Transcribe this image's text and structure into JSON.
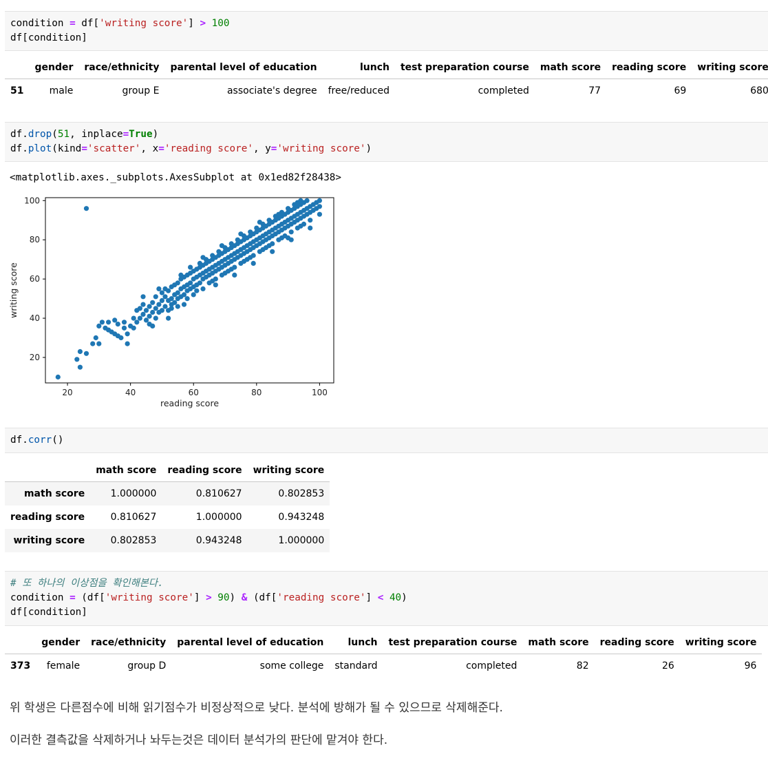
{
  "cells": {
    "cell1": {
      "code": {
        "line1": {
          "var": "condition",
          "eq": " = ",
          "obj": "df[",
          "key": "'writing score'",
          "close": "] ",
          "op": ">",
          "num": " 100"
        },
        "line2": "df[condition]"
      },
      "table": {
        "columns": [
          "gender",
          "race/ethnicity",
          "parental level of education",
          "lunch",
          "test preparation course",
          "math score",
          "reading score",
          "writing score"
        ],
        "rows": [
          {
            "index": "51",
            "values": [
              "male",
              "group E",
              "associate's degree",
              "free/reduced",
              "completed",
              "77",
              "69",
              "680"
            ]
          }
        ]
      }
    },
    "cell2": {
      "code": {
        "line1": {
          "a": "df.",
          "fn": "drop",
          "b": "(",
          "num": "51",
          ",": ", inplace",
          "eq": "=",
          "kw": "True",
          "close": ")"
        },
        "line2": {
          "a": "df.",
          "fn": "plot",
          "b": "(kind",
          "eq1": "=",
          "s1": "'scatter'",
          "c": ", x",
          "eq2": "=",
          "s2": "'reading score'",
          "d": ", y",
          "eq3": "=",
          "s3": "'writing score'",
          "close": ")"
        }
      },
      "output_text": "<matplotlib.axes._subplots.AxesSubplot at 0x1ed82f28438>"
    },
    "cell3": {
      "code": {
        "a": "df.",
        "fn": "corr",
        "b": "()"
      },
      "table": {
        "columns": [
          "math score",
          "reading score",
          "writing score"
        ],
        "rows": [
          {
            "index": "math score",
            "values": [
              "1.000000",
              "0.810627",
              "0.802853"
            ]
          },
          {
            "index": "reading score",
            "values": [
              "0.810627",
              "1.000000",
              "0.943248"
            ]
          },
          {
            "index": "writing score",
            "values": [
              "0.802853",
              "0.943248",
              "1.000000"
            ]
          }
        ]
      }
    },
    "cell4": {
      "code": {
        "comment": "# 또 하나의 이상점을 확인해본다.",
        "line2": {
          "a": "condition ",
          "eq": "=",
          "b": " (df[",
          "s1": "'writing score'",
          "c": "] ",
          "gt": ">",
          "n1": " 90",
          "d": ") ",
          "amp": "&",
          "e": " (df[",
          "s2": "'reading score'",
          "f": "] ",
          "lt": "<",
          "n2": " 40",
          "g": ")"
        },
        "line3": "df[condition]"
      },
      "table": {
        "columns": [
          "gender",
          "race/ethnicity",
          "parental level of education",
          "lunch",
          "test preparation course",
          "math score",
          "reading score",
          "writing score"
        ],
        "rows": [
          {
            "index": "373",
            "values": [
              "female",
              "group D",
              "some college",
              "standard",
              "completed",
              "82",
              "26",
              "96"
            ]
          }
        ]
      }
    }
  },
  "markdown": {
    "p1": "위 학생은 다른점수에 비해 읽기점수가 비정상적으로 낮다. 분석에 방해가 될 수 있으므로 삭제해준다.",
    "p2": "이러한 결측값을 삭제하거나 놔두는것은 데이터 분석가의 판단에 맡겨야 한다."
  },
  "chart_data": {
    "type": "scatter",
    "xlabel": "reading score",
    "ylabel": "writing score",
    "xlim": [
      13,
      104.5
    ],
    "ylim": [
      7,
      101.5
    ],
    "xticks": [
      20,
      40,
      60,
      80,
      100
    ],
    "yticks": [
      20,
      40,
      60,
      80,
      100
    ],
    "grid": false,
    "color": "#1f77b4",
    "points": [
      [
        17,
        10
      ],
      [
        23,
        19
      ],
      [
        24,
        15
      ],
      [
        24,
        23
      ],
      [
        26,
        22
      ],
      [
        26,
        96
      ],
      [
        28,
        27
      ],
      [
        29,
        30
      ],
      [
        30,
        27
      ],
      [
        30,
        36
      ],
      [
        31,
        38
      ],
      [
        32,
        35
      ],
      [
        33,
        34
      ],
      [
        33,
        38
      ],
      [
        34,
        33
      ],
      [
        35,
        32
      ],
      [
        35,
        39
      ],
      [
        36,
        31
      ],
      [
        36,
        37
      ],
      [
        37,
        30
      ],
      [
        38,
        35
      ],
      [
        38,
        38
      ],
      [
        39,
        32
      ],
      [
        39,
        27
      ],
      [
        40,
        36
      ],
      [
        41,
        35
      ],
      [
        41,
        40
      ],
      [
        42,
        38
      ],
      [
        42,
        44
      ],
      [
        43,
        40
      ],
      [
        43,
        45
      ],
      [
        44,
        42
      ],
      [
        44,
        47
      ],
      [
        45,
        39
      ],
      [
        45,
        44
      ],
      [
        46,
        41
      ],
      [
        46,
        46
      ],
      [
        46,
        37
      ],
      [
        47,
        43
      ],
      [
        47,
        48
      ],
      [
        48,
        45
      ],
      [
        48,
        40
      ],
      [
        48,
        51
      ],
      [
        49,
        47
      ],
      [
        49,
        43
      ],
      [
        50,
        49
      ],
      [
        50,
        44
      ],
      [
        50,
        53
      ],
      [
        51,
        46
      ],
      [
        51,
        51
      ],
      [
        52,
        49
      ],
      [
        52,
        44
      ],
      [
        52,
        54
      ],
      [
        53,
        50
      ],
      [
        53,
        47
      ],
      [
        53,
        56
      ],
      [
        54,
        52
      ],
      [
        54,
        48
      ],
      [
        54,
        57
      ],
      [
        55,
        53
      ],
      [
        55,
        50
      ],
      [
        55,
        58
      ],
      [
        56,
        55
      ],
      [
        56,
        51
      ],
      [
        56,
        60
      ],
      [
        57,
        56
      ],
      [
        57,
        52
      ],
      [
        57,
        61
      ],
      [
        58,
        57
      ],
      [
        58,
        54
      ],
      [
        58,
        62
      ],
      [
        59,
        58
      ],
      [
        59,
        55
      ],
      [
        59,
        63
      ],
      [
        60,
        60
      ],
      [
        60,
        56
      ],
      [
        60,
        64
      ],
      [
        61,
        61
      ],
      [
        61,
        57
      ],
      [
        61,
        65
      ],
      [
        62,
        62
      ],
      [
        62,
        58
      ],
      [
        62,
        66
      ],
      [
        63,
        63
      ],
      [
        63,
        60
      ],
      [
        63,
        67
      ],
      [
        64,
        64
      ],
      [
        64,
        61
      ],
      [
        64,
        68
      ],
      [
        65,
        65
      ],
      [
        65,
        62
      ],
      [
        65,
        69
      ],
      [
        66,
        66
      ],
      [
        66,
        63
      ],
      [
        66,
        70
      ],
      [
        67,
        67
      ],
      [
        67,
        64
      ],
      [
        67,
        71
      ],
      [
        68,
        68
      ],
      [
        68,
        65
      ],
      [
        68,
        72
      ],
      [
        69,
        69
      ],
      [
        69,
        66
      ],
      [
        69,
        73
      ],
      [
        70,
        70
      ],
      [
        70,
        67
      ],
      [
        70,
        74
      ],
      [
        71,
        71
      ],
      [
        71,
        68
      ],
      [
        71,
        75
      ],
      [
        72,
        72
      ],
      [
        72,
        69
      ],
      [
        72,
        76
      ],
      [
        73,
        73
      ],
      [
        73,
        70
      ],
      [
        73,
        77
      ],
      [
        74,
        74
      ],
      [
        74,
        71
      ],
      [
        74,
        78
      ],
      [
        75,
        75
      ],
      [
        75,
        72
      ],
      [
        75,
        79
      ],
      [
        76,
        76
      ],
      [
        76,
        73
      ],
      [
        76,
        80
      ],
      [
        77,
        77
      ],
      [
        77,
        74
      ],
      [
        77,
        81
      ],
      [
        78,
        78
      ],
      [
        78,
        75
      ],
      [
        78,
        82
      ],
      [
        79,
        79
      ],
      [
        79,
        76
      ],
      [
        79,
        83
      ],
      [
        80,
        80
      ],
      [
        80,
        77
      ],
      [
        80,
        84
      ],
      [
        81,
        81
      ],
      [
        81,
        78
      ],
      [
        81,
        85
      ],
      [
        82,
        82
      ],
      [
        82,
        79
      ],
      [
        82,
        86
      ],
      [
        83,
        83
      ],
      [
        83,
        80
      ],
      [
        83,
        87
      ],
      [
        84,
        84
      ],
      [
        84,
        81
      ],
      [
        84,
        88
      ],
      [
        85,
        85
      ],
      [
        85,
        82
      ],
      [
        85,
        89
      ],
      [
        86,
        86
      ],
      [
        86,
        83
      ],
      [
        86,
        90
      ],
      [
        87,
        87
      ],
      [
        87,
        84
      ],
      [
        87,
        91
      ],
      [
        88,
        88
      ],
      [
        88,
        85
      ],
      [
        88,
        92
      ],
      [
        89,
        89
      ],
      [
        89,
        86
      ],
      [
        89,
        93
      ],
      [
        90,
        90
      ],
      [
        90,
        87
      ],
      [
        90,
        94
      ],
      [
        91,
        91
      ],
      [
        91,
        88
      ],
      [
        91,
        95
      ],
      [
        92,
        92
      ],
      [
        92,
        89
      ],
      [
        92,
        96
      ],
      [
        93,
        93
      ],
      [
        93,
        90
      ],
      [
        93,
        97
      ],
      [
        94,
        94
      ],
      [
        94,
        91
      ],
      [
        94,
        98
      ],
      [
        95,
        95
      ],
      [
        95,
        92
      ],
      [
        95,
        99
      ],
      [
        96,
        96
      ],
      [
        96,
        93
      ],
      [
        97,
        97
      ],
      [
        97,
        94
      ],
      [
        98,
        98
      ],
      [
        98,
        95
      ],
      [
        99,
        99
      ],
      [
        99,
        96
      ],
      [
        100,
        100
      ],
      [
        100,
        97
      ],
      [
        100,
        93
      ],
      [
        51,
        55
      ],
      [
        53,
        45
      ],
      [
        55,
        46
      ],
      [
        56,
        62
      ],
      [
        58,
        50
      ],
      [
        59,
        66
      ],
      [
        61,
        54
      ],
      [
        62,
        68
      ],
      [
        63,
        55
      ],
      [
        64,
        70
      ],
      [
        65,
        58
      ],
      [
        66,
        72
      ],
      [
        67,
        60
      ],
      [
        68,
        74
      ],
      [
        69,
        62
      ],
      [
        70,
        76
      ],
      [
        71,
        64
      ],
      [
        72,
        78
      ],
      [
        73,
        66
      ],
      [
        74,
        80
      ],
      [
        75,
        68
      ],
      [
        76,
        82
      ],
      [
        77,
        70
      ],
      [
        78,
        84
      ],
      [
        79,
        72
      ],
      [
        80,
        86
      ],
      [
        81,
        74
      ],
      [
        82,
        88
      ],
      [
        83,
        76
      ],
      [
        84,
        90
      ],
      [
        85,
        78
      ],
      [
        86,
        92
      ],
      [
        87,
        80
      ],
      [
        88,
        94
      ],
      [
        89,
        82
      ],
      [
        90,
        96
      ],
      [
        91,
        84
      ],
      [
        92,
        98
      ],
      [
        93,
        86
      ],
      [
        94,
        100
      ],
      [
        95,
        88
      ],
      [
        96,
        100
      ],
      [
        97,
        90
      ],
      [
        44,
        51
      ],
      [
        47,
        36
      ],
      [
        49,
        55
      ],
      [
        52,
        40
      ],
      [
        57,
        47
      ],
      [
        60,
        52
      ],
      [
        63,
        71
      ],
      [
        66,
        59
      ],
      [
        69,
        77
      ],
      [
        72,
        65
      ],
      [
        75,
        83
      ],
      [
        78,
        71
      ],
      [
        81,
        89
      ],
      [
        84,
        77
      ],
      [
        87,
        93
      ],
      [
        90,
        81
      ],
      [
        93,
        99
      ],
      [
        67,
        57
      ],
      [
        70,
        63
      ],
      [
        73,
        62
      ],
      [
        76,
        69
      ],
      [
        79,
        68
      ],
      [
        82,
        75
      ],
      [
        85,
        74
      ],
      [
        88,
        81
      ],
      [
        91,
        80
      ],
      [
        94,
        87
      ],
      [
        97,
        86
      ]
    ]
  }
}
